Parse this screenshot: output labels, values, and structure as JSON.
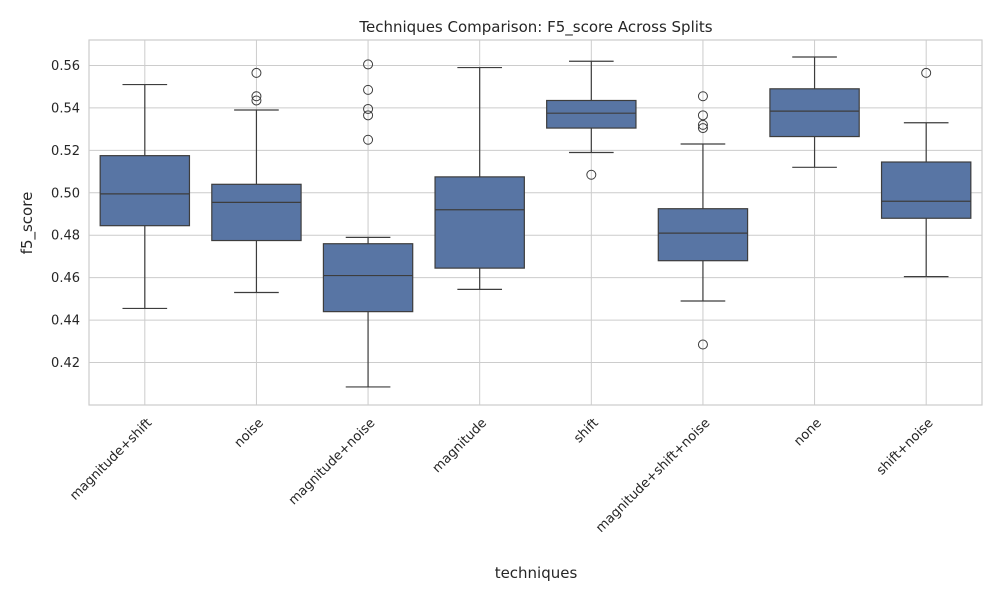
{
  "chart_data": {
    "type": "box",
    "title": "Techniques Comparison: F5_score Across Splits",
    "xlabel": "techniques",
    "ylabel": "f5_score",
    "ylim": [
      0.4,
      0.572
    ],
    "yticks": [
      0.42,
      0.44,
      0.46,
      0.48,
      0.5,
      0.52,
      0.54,
      0.56
    ],
    "ytick_labels": [
      "0.42",
      "0.44",
      "0.46",
      "0.48",
      "0.50",
      "0.52",
      "0.54",
      "0.56"
    ],
    "grid": true,
    "box_color": "#5875a4",
    "line_color": "#3d3d3d",
    "categories": [
      "magnitude+shift",
      "noise",
      "magnitude+noise",
      "magnitude",
      "shift",
      "magnitude+shift+noise",
      "none",
      "shift+noise"
    ],
    "boxes": [
      {
        "category": "magnitude+shift",
        "whislo": 0.4455,
        "q1": 0.4845,
        "median": 0.4995,
        "q3": 0.5175,
        "whishi": 0.551,
        "fliers": []
      },
      {
        "category": "noise",
        "whislo": 0.453,
        "q1": 0.4775,
        "median": 0.4955,
        "q3": 0.504,
        "whishi": 0.539,
        "fliers": [
          0.5435,
          0.5455,
          0.5565
        ]
      },
      {
        "category": "magnitude+noise",
        "whislo": 0.4085,
        "q1": 0.444,
        "median": 0.461,
        "q3": 0.476,
        "whishi": 0.479,
        "fliers": [
          0.525,
          0.5365,
          0.5395,
          0.5485,
          0.5605
        ]
      },
      {
        "category": "magnitude",
        "whislo": 0.4545,
        "q1": 0.4645,
        "median": 0.492,
        "q3": 0.5075,
        "whishi": 0.559,
        "fliers": []
      },
      {
        "category": "shift",
        "whislo": 0.519,
        "q1": 0.5305,
        "median": 0.5375,
        "q3": 0.5435,
        "whishi": 0.562,
        "fliers": [
          0.5085
        ]
      },
      {
        "category": "magnitude+shift+noise",
        "whislo": 0.449,
        "q1": 0.468,
        "median": 0.481,
        "q3": 0.4925,
        "whishi": 0.523,
        "fliers": [
          0.4285,
          0.5305,
          0.532,
          0.5365,
          0.5455
        ]
      },
      {
        "category": "none",
        "whislo": 0.512,
        "q1": 0.5265,
        "median": 0.5385,
        "q3": 0.549,
        "whishi": 0.564,
        "fliers": []
      },
      {
        "category": "shift+noise",
        "whislo": 0.4605,
        "q1": 0.488,
        "median": 0.496,
        "q3": 0.5145,
        "whishi": 0.533,
        "fliers": [
          0.5565
        ]
      }
    ]
  }
}
